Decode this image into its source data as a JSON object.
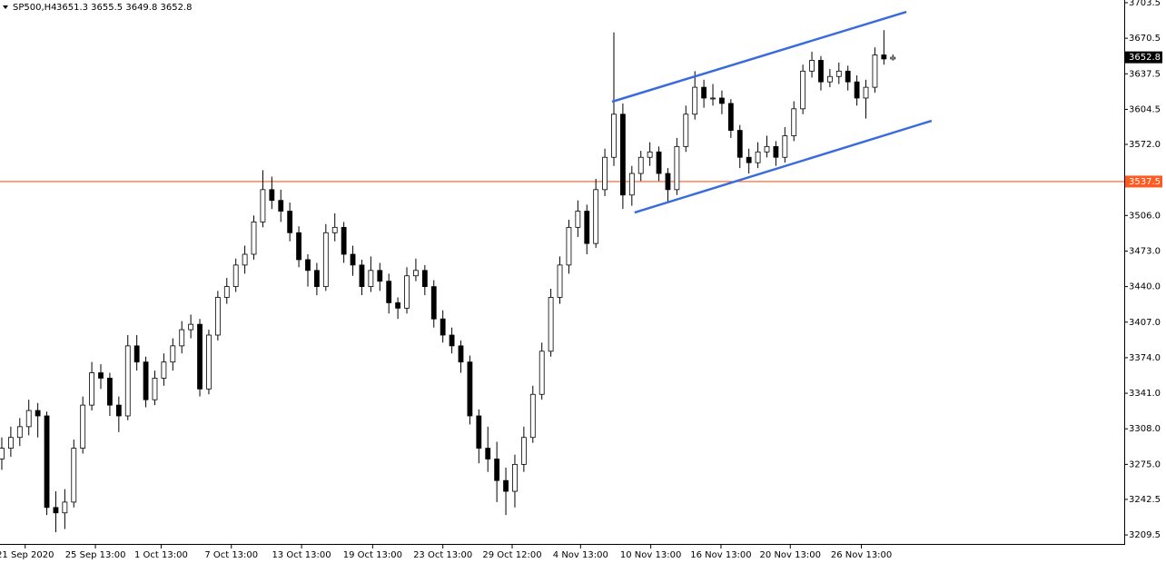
{
  "chart_data": {
    "type": "candlestick",
    "symbol": "SP500,H4",
    "header_values": "3651.3 3655.5 3649.8 3652.8",
    "open": [
      3280,
      3290,
      3300,
      3310,
      3325,
      3320,
      3235,
      3230,
      3240,
      3290,
      3330,
      3360,
      3355,
      3330,
      3320,
      3385,
      3370,
      3335,
      3355,
      3370,
      3385,
      3400,
      3405,
      3345,
      3395,
      3430,
      3440,
      3460,
      3470,
      3500,
      3530,
      3520,
      3510,
      3490,
      3465,
      3455,
      3440,
      3490,
      3495,
      3470,
      3460,
      3440,
      3455,
      3445,
      3425,
      3420,
      3450,
      3455,
      3440,
      3410,
      3395,
      3385,
      3370,
      3320,
      3290,
      3280,
      3260,
      3250,
      3275,
      3300,
      3340,
      3380,
      3430,
      3460,
      3495,
      3510,
      3480,
      3530,
      3560,
      3600,
      3525,
      3545,
      3560,
      3565,
      3545,
      3530,
      3570,
      3600,
      3625,
      3615,
      3615,
      3610,
      3585,
      3560,
      3555,
      3565,
      3570,
      3560,
      3580,
      3605,
      3640,
      3650,
      3630,
      3635,
      3640,
      3630,
      3615,
      3625,
      3655,
      3651.3
    ],
    "high": [
      3300,
      3310,
      3318,
      3335,
      3332,
      3324,
      3250,
      3252,
      3298,
      3338,
      3370,
      3368,
      3360,
      3338,
      3395,
      3395,
      3375,
      3362,
      3378,
      3392,
      3408,
      3414,
      3410,
      3400,
      3436,
      3448,
      3466,
      3478,
      3506,
      3548,
      3542,
      3530,
      3518,
      3496,
      3470,
      3462,
      3498,
      3508,
      3500,
      3478,
      3465,
      3468,
      3462,
      3452,
      3430,
      3458,
      3466,
      3460,
      3446,
      3418,
      3402,
      3390,
      3376,
      3326,
      3310,
      3296,
      3272,
      3284,
      3310,
      3348,
      3388,
      3438,
      3468,
      3502,
      3520,
      3516,
      3540,
      3568,
      3676,
      3610,
      3552,
      3566,
      3574,
      3570,
      3550,
      3578,
      3608,
      3640,
      3632,
      3628,
      3622,
      3614,
      3590,
      3568,
      3574,
      3580,
      3575,
      3588,
      3612,
      3646,
      3658,
      3654,
      3642,
      3648,
      3645,
      3636,
      3632,
      3662,
      3678,
      3655.5
    ],
    "low": [
      3270,
      3282,
      3292,
      3302,
      3300,
      3228,
      3212,
      3215,
      3235,
      3285,
      3325,
      3345,
      3320,
      3305,
      3316,
      3362,
      3328,
      3330,
      3348,
      3362,
      3378,
      3392,
      3338,
      3340,
      3390,
      3424,
      3435,
      3452,
      3465,
      3495,
      3512,
      3500,
      3482,
      3458,
      3440,
      3432,
      3436,
      3482,
      3462,
      3450,
      3432,
      3435,
      3436,
      3415,
      3410,
      3415,
      3445,
      3432,
      3402,
      3388,
      3378,
      3360,
      3312,
      3276,
      3268,
      3240,
      3228,
      3235,
      3268,
      3295,
      3335,
      3375,
      3424,
      3452,
      3486,
      3470,
      3476,
      3524,
      3552,
      3512,
      3515,
      3538,
      3552,
      3538,
      3518,
      3525,
      3565,
      3595,
      3606,
      3608,
      3600,
      3578,
      3550,
      3545,
      3550,
      3560,
      3552,
      3555,
      3575,
      3600,
      3634,
      3622,
      3625,
      3628,
      3622,
      3608,
      3596,
      3620,
      3646,
      3649.8
    ],
    "close": [
      3290,
      3300,
      3310,
      3325,
      3320,
      3235,
      3230,
      3240,
      3290,
      3330,
      3360,
      3355,
      3330,
      3320,
      3385,
      3370,
      3335,
      3355,
      3370,
      3385,
      3400,
      3405,
      3345,
      3395,
      3430,
      3440,
      3460,
      3470,
      3500,
      3530,
      3520,
      3510,
      3490,
      3465,
      3455,
      3440,
      3490,
      3495,
      3470,
      3460,
      3440,
      3455,
      3445,
      3425,
      3420,
      3450,
      3455,
      3440,
      3410,
      3395,
      3385,
      3370,
      3320,
      3290,
      3280,
      3260,
      3250,
      3275,
      3300,
      3340,
      3380,
      3430,
      3460,
      3495,
      3510,
      3480,
      3530,
      3560,
      3600,
      3525,
      3545,
      3560,
      3565,
      3545,
      3530,
      3570,
      3600,
      3625,
      3615,
      3615,
      3610,
      3585,
      3560,
      3555,
      3565,
      3570,
      3560,
      3580,
      3605,
      3640,
      3650,
      3630,
      3635,
      3640,
      3630,
      3615,
      3625,
      3655,
      3651.3,
      3652.8
    ],
    "up_color": "#ffffff",
    "down_color": "#000000",
    "wick_color": "#000000",
    "xlim": [
      -0.2,
      124.7
    ],
    "ylim": [
      3202,
      3706
    ],
    "xticks": [
      {
        "value": 2.6,
        "label": "21 Sep 2020"
      },
      {
        "value": 10.4,
        "label": "25 Sep 13:00"
      },
      {
        "value": 17.7,
        "label": "1 Oct 13:00"
      },
      {
        "value": 25.5,
        "label": "7 Oct 13:00"
      },
      {
        "value": 33.3,
        "label": "13 Oct 13:00"
      },
      {
        "value": 41.2,
        "label": "19 Oct 13:00"
      },
      {
        "value": 49,
        "label": "23 Oct 13:00"
      },
      {
        "value": 56.7,
        "label": "29 Oct 12:00"
      },
      {
        "value": 64.3,
        "label": "4 Nov 13:00"
      },
      {
        "value": 72.1,
        "label": "10 Nov 13:00"
      },
      {
        "value": 79.9,
        "label": "16 Nov 13:00"
      },
      {
        "value": 87.6,
        "label": "20 Nov 13:00"
      },
      {
        "value": 95.5,
        "label": "26 Nov 13:00"
      }
    ],
    "yticks": [
      3703.5,
      3670.5,
      3637.5,
      3604.5,
      {
        "value": 3572,
        "label": "3572.0"
      },
      {
        "value": 3506,
        "label": "3506.0"
      },
      {
        "value": 3473,
        "label": "3473.0"
      },
      {
        "value": 3440,
        "label": "3440.0"
      },
      {
        "value": 3407,
        "label": "3407.0"
      },
      {
        "value": 3374,
        "label": "3374.0"
      },
      {
        "value": 3341,
        "label": "3341.0"
      },
      {
        "value": 3308,
        "label": "3308.0"
      },
      {
        "value": 3275,
        "label": "3275.0"
      },
      3242.5,
      3209.5
    ],
    "hline": {
      "value": 3537.5,
      "color": "#ff5a1f"
    },
    "trendlines": [
      {
        "x": [
          67.8,
          100.5
        ],
        "y": [
          3611.6,
          3695
        ],
        "color": "#3a6bdc"
      },
      {
        "x": [
          70.3,
          103.3
        ],
        "y": [
          3508.7,
          3593.9
        ],
        "color": "#3a6bdc"
      }
    ]
  }
}
